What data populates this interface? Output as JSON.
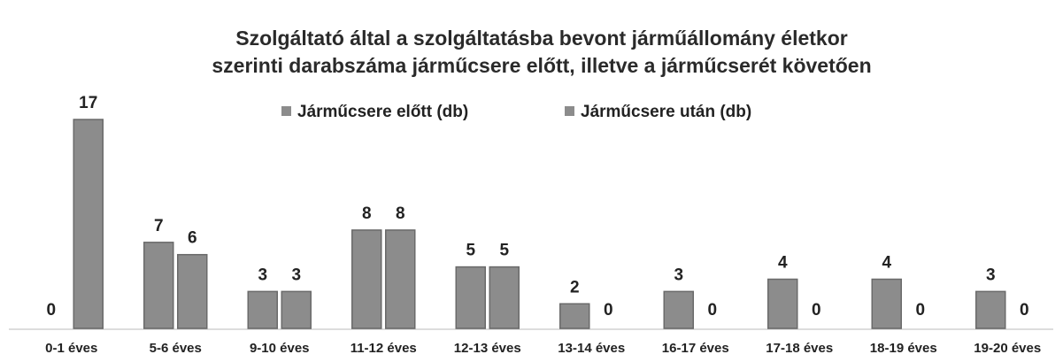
{
  "chart_data": {
    "type": "bar",
    "title": [
      "Szolgáltató által a szolgáltatásba bevont járműállomány életkor",
      "szerinti darabszáma járműcsere előtt, illetve a járműcserét követően"
    ],
    "categories": [
      "0-1 éves",
      "5-6 éves",
      "9-10 éves",
      "11-12 éves",
      "12-13 éves",
      "13-14 éves",
      "16-17 éves",
      "17-18 éves",
      "18-19 éves",
      "19-20 éves"
    ],
    "series": [
      {
        "name": "Járműcsere előtt (db)",
        "color": "#8c8c8c",
        "values": [
          0,
          7,
          3,
          8,
          5,
          2,
          3,
          4,
          4,
          3
        ]
      },
      {
        "name": "Járműcsere után (db)",
        "color": "#8c8c8c",
        "values": [
          17,
          6,
          3,
          8,
          5,
          0,
          0,
          0,
          0,
          0
        ]
      }
    ]
  }
}
